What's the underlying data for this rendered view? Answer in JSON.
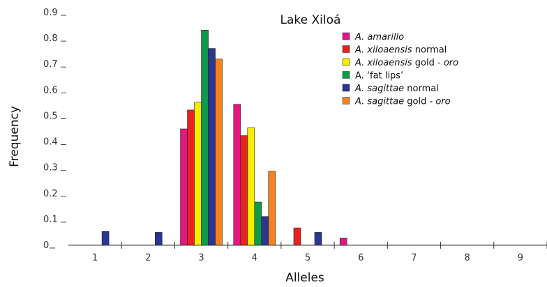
{
  "chart_data": {
    "type": "bar",
    "title": "Lake Xiloá",
    "xlabel": "Alleles",
    "ylabel": "Frequency",
    "categories": [
      "1",
      "2",
      "3",
      "4",
      "5",
      "6",
      "7",
      "8",
      "9"
    ],
    "yticks": [
      "0",
      "0.1",
      "0.2",
      "0.3",
      "0.4",
      "0.5",
      "0.6",
      "0.7",
      "0.8",
      "0.9"
    ],
    "ylim": [
      0,
      0.9
    ],
    "grid": false,
    "legend_position": "top-right",
    "series": [
      {
        "name": "A. amarillo",
        "legend_parts": [
          {
            "t": "A. amarillo",
            "i": true
          }
        ],
        "color": "#e6157f",
        "values": [
          0,
          0,
          0.45,
          0.545,
          0,
          0.027,
          0,
          0,
          0
        ]
      },
      {
        "name": "A. xiloaensis normal",
        "legend_parts": [
          {
            "t": "A. xiloaensis",
            "i": true
          },
          {
            "t": " normal",
            "i": false
          }
        ],
        "color": "#e8231f",
        "values": [
          0,
          0,
          0.523,
          0.424,
          0.067,
          0,
          0,
          0,
          0
        ]
      },
      {
        "name": "A. xiloaensis gold - oro",
        "legend_parts": [
          {
            "t": "A. xiloaensis",
            "i": true
          },
          {
            "t": " gold - ",
            "i": false
          },
          {
            "t": "oro",
            "i": true
          }
        ],
        "color": "#f8ec00",
        "values": [
          0,
          0,
          0.553,
          0.454,
          0,
          0,
          0,
          0,
          0
        ]
      },
      {
        "name": "A. ‘fat lips’",
        "legend_parts": [
          {
            "t": "A. ‘fat lips’",
            "i": false
          }
        ],
        "color": "#0f9a47",
        "values": [
          0,
          0,
          0.832,
          0.167,
          0,
          0,
          0,
          0,
          0
        ]
      },
      {
        "name": "A. sagittae normal",
        "legend_parts": [
          {
            "t": "A. sagittae",
            "i": true
          },
          {
            "t": " normal",
            "i": false
          }
        ],
        "color": "#2a3691",
        "values": [
          0.053,
          0.05,
          0.761,
          0.111,
          0.05,
          0,
          0,
          0,
          0
        ]
      },
      {
        "name": "A. sagittae gold - oro",
        "legend_parts": [
          {
            "t": "A. sagittae",
            "i": true
          },
          {
            "t": " gold - ",
            "i": false
          },
          {
            "t": "oro",
            "i": true
          }
        ],
        "color": "#f58220",
        "values": [
          0,
          0,
          0.72,
          0.286,
          0,
          0,
          0,
          0,
          0
        ]
      }
    ]
  }
}
